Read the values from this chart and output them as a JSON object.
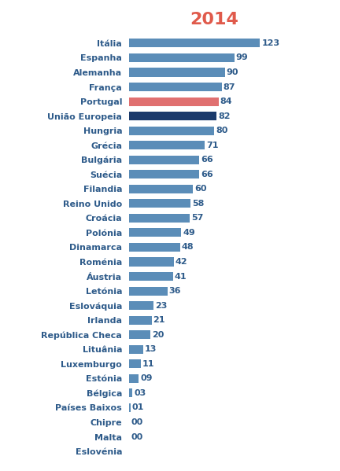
{
  "title": "2014",
  "title_color": "#E05A4B",
  "title_fontsize": 16,
  "categories": [
    "Itália",
    "Espanha",
    "Alemanha",
    "França",
    "Portugal",
    "União Europeia",
    "Hungria",
    "Grécia",
    "Bulgária",
    "Suécia",
    "Filandia",
    "Reino Unido",
    "Croácia",
    "Polónia",
    "Dinamarca",
    "Roménia",
    "Áustria",
    "Letónia",
    "Eslováquia",
    "Irlanda",
    "República Checa",
    "Lituânia",
    "Luxemburgo",
    "Estónia",
    "Bélgica",
    "Países Baixos",
    "Chipre",
    "Malta",
    "Eslovénia"
  ],
  "values": [
    123,
    99,
    90,
    87,
    84,
    82,
    80,
    71,
    66,
    66,
    60,
    58,
    57,
    49,
    48,
    42,
    41,
    36,
    23,
    21,
    20,
    13,
    11,
    9,
    3,
    1,
    0,
    0,
    0
  ],
  "labels": [
    "123",
    "99",
    "90",
    "87",
    "84",
    "82",
    "80",
    "71",
    "66",
    "66",
    "60",
    "58",
    "57",
    "49",
    "48",
    "42",
    "41",
    "36",
    "23",
    "21",
    "20",
    "13",
    "11",
    "09",
    "03",
    "01",
    "00",
    "00",
    ""
  ],
  "bar_colors": [
    "#5B8DB8",
    "#5B8DB8",
    "#5B8DB8",
    "#5B8DB8",
    "#E07070",
    "#1B3A6B",
    "#5B8DB8",
    "#5B8DB8",
    "#5B8DB8",
    "#5B8DB8",
    "#5B8DB8",
    "#5B8DB8",
    "#5B8DB8",
    "#5B8DB8",
    "#5B8DB8",
    "#5B8DB8",
    "#5B8DB8",
    "#5B8DB8",
    "#5B8DB8",
    "#5B8DB8",
    "#5B8DB8",
    "#5B8DB8",
    "#5B8DB8",
    "#5B8DB8",
    "#5B8DB8",
    "#5B8DB8",
    "#5B8DB8",
    "#5B8DB8",
    "#5B8DB8"
  ],
  "label_color": "#2E5B8A",
  "category_color": "#2E5B8A",
  "bar_height": 0.6,
  "xlim": [
    0,
    160
  ],
  "fontsize_labels": 8,
  "fontsize_categories": 8,
  "background_color": "#FFFFFF"
}
